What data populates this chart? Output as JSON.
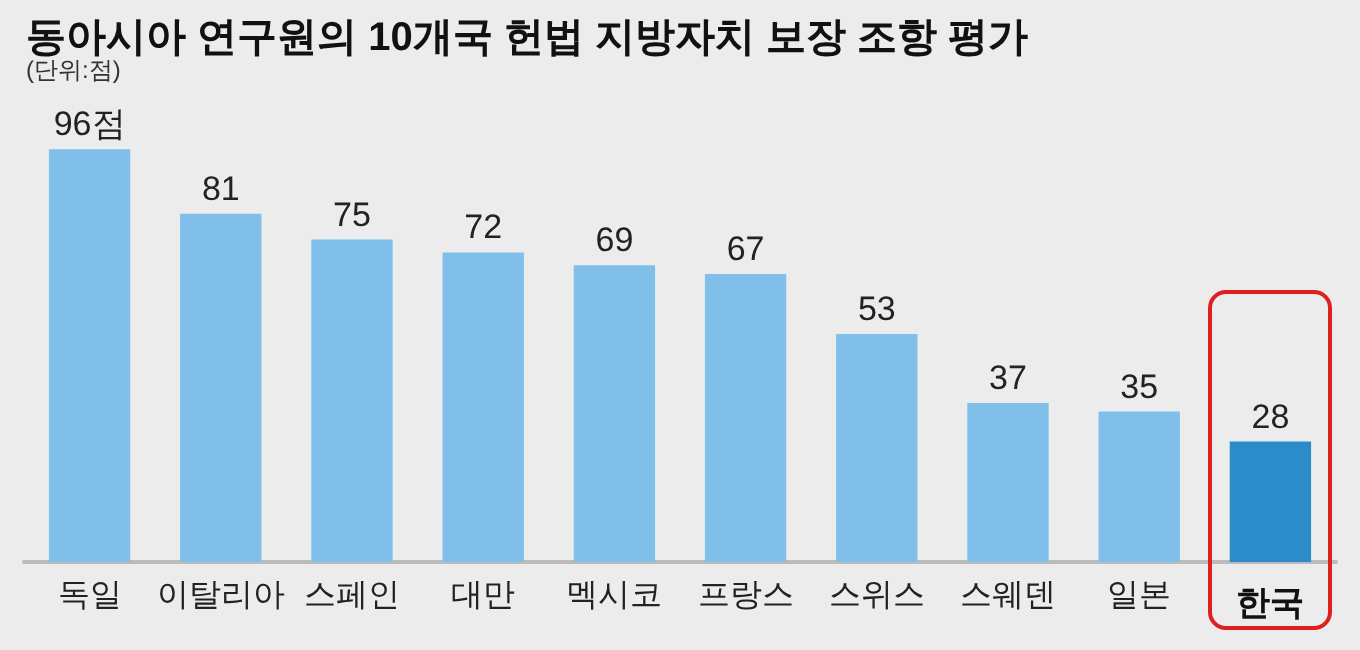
{
  "chart_data": {
    "type": "bar",
    "title": "동아시아 연구원의 10개국 헌법 지방자치 보장 조항 평가",
    "subtitle": "(단위:점)",
    "categories": [
      "독일",
      "이탈리아",
      "스페인",
      "대만",
      "멕시코",
      "프랑스",
      "스위스",
      "스웨덴",
      "일본",
      "한국"
    ],
    "values": [
      96,
      81,
      75,
      72,
      69,
      67,
      53,
      37,
      35,
      28
    ],
    "value_labels": [
      "96점",
      "81",
      "75",
      "72",
      "69",
      "67",
      "53",
      "37",
      "35",
      "28"
    ],
    "colors": [
      "#80bfe9",
      "#80bfe9",
      "#80bfe9",
      "#80bfe9",
      "#80bfe9",
      "#80bfe9",
      "#80bfe9",
      "#80bfe9",
      "#80bfe9",
      "#2a8cc9"
    ],
    "tick_labels": "x"
  }
}
